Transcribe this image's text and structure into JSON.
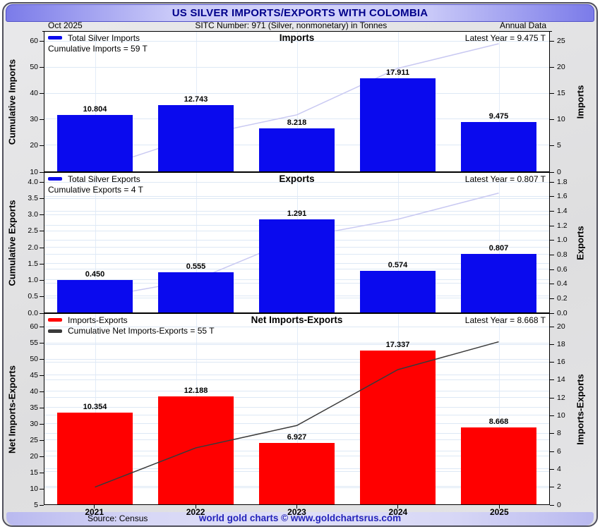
{
  "title": "US SILVER IMPORTS/EXPORTS WITH COLOMBIA",
  "header": {
    "date": "Oct  2025",
    "sitc": "SITC Number: 971 (Silver, nonmonetary) in Tonnes",
    "annual": "Annual Data"
  },
  "footer": {
    "source": "Source: Census",
    "credit": "world gold charts © www.goldchartsrus.com"
  },
  "colors": {
    "import_export_bar_blue": "#0a0aee",
    "net_bar_red": "#ff0000",
    "cumulative_line_faint": "#c9c9f2",
    "cumulative_net_line_dark": "#3a3a3a",
    "title_text": "#00008b",
    "credit_text": "#2323bb"
  },
  "chart_data": [
    {
      "type": "bar",
      "title": "Imports",
      "legend": [
        {
          "label": "Total Silver Imports",
          "color": "#0a0aee"
        }
      ],
      "annotation": {
        "swatch": null,
        "text": "Cumulative Imports = 59 T"
      },
      "latest": "Latest Year = 9.475 T",
      "categories": [
        "2021",
        "2022",
        "2023",
        "2024",
        "2025"
      ],
      "values": [
        10.804,
        12.743,
        8.218,
        17.911,
        9.475
      ],
      "labels": [
        "10.804",
        "12.743",
        "8.218",
        "17.911",
        "9.475"
      ],
      "bar_color": "#0a0aee",
      "left_axis": {
        "title": "Cumulative Imports",
        "min": 10,
        "max": 60,
        "ticks": [
          "10",
          "20",
          "30",
          "40",
          "50",
          "60"
        ]
      },
      "right_axis": {
        "title": "Imports",
        "min": 0,
        "max": 25,
        "ticks": [
          "0",
          "5",
          "10",
          "15",
          "20",
          "25"
        ]
      },
      "cumulative_line": {
        "axis": "left",
        "color": "#c9c9f2",
        "values": [
          10.804,
          23.547,
          31.765,
          49.676,
          59.151
        ]
      }
    },
    {
      "type": "bar",
      "title": "Exports",
      "legend": [
        {
          "label": "Total Silver Exports",
          "color": "#0a0aee"
        }
      ],
      "annotation": {
        "swatch": null,
        "text": "Cumulative Exports = 4 T"
      },
      "latest": "Latest Year = 0.807 T",
      "categories": [
        "2021",
        "2022",
        "2023",
        "2024",
        "2025"
      ],
      "values": [
        0.45,
        0.555,
        1.291,
        0.574,
        0.807
      ],
      "labels": [
        "0.450",
        "0.555",
        "1.291",
        "0.574",
        "0.807"
      ],
      "bar_color": "#0a0aee",
      "left_axis": {
        "title": "Cumulative Exports",
        "min": 0,
        "max": 4,
        "ticks": [
          "0.0",
          "0.5",
          "1.0",
          "1.5",
          "2.0",
          "2.5",
          "3.0",
          "3.5",
          "4.0"
        ]
      },
      "right_axis": {
        "title": "Exports",
        "min": 0,
        "max": 1.8,
        "ticks": [
          "0.0",
          "0.2",
          "0.4",
          "0.6",
          "0.8",
          "1.0",
          "1.2",
          "1.4",
          "1.6",
          "1.8"
        ]
      },
      "cumulative_line": {
        "axis": "left",
        "color": "#c9c9f2",
        "values": [
          0.45,
          1.005,
          2.296,
          2.87,
          3.677
        ]
      }
    },
    {
      "type": "bar",
      "title": "Net Imports-Exports",
      "legend": [
        {
          "label": "Imports-Exports",
          "color": "#ff0000"
        }
      ],
      "annotation": {
        "swatch": "#3a3a3a",
        "text": "Cumulative Net Imports-Exports = 55 T"
      },
      "latest": "Latest Year = 8.668 T",
      "categories": [
        "2021",
        "2022",
        "2023",
        "2024",
        "2025"
      ],
      "values": [
        10.354,
        12.188,
        6.927,
        17.337,
        8.668
      ],
      "labels": [
        "10.354",
        "12.188",
        "6.927",
        "17.337",
        "8.668"
      ],
      "bar_color": "#ff0000",
      "left_axis": {
        "title": "Net Imports-Exports",
        "min": 5,
        "max": 60,
        "ticks": [
          "5",
          "10",
          "15",
          "20",
          "25",
          "30",
          "35",
          "40",
          "45",
          "50",
          "55",
          "60"
        ]
      },
      "right_axis": {
        "title": "Imports-Exports",
        "min": 0,
        "max": 20,
        "ticks": [
          "0",
          "2",
          "4",
          "6",
          "8",
          "10",
          "12",
          "14",
          "16",
          "18",
          "20"
        ]
      },
      "cumulative_line": {
        "axis": "left",
        "color": "#3a3a3a",
        "values": [
          10.354,
          22.542,
          29.469,
          46.806,
          55.474
        ]
      }
    }
  ]
}
